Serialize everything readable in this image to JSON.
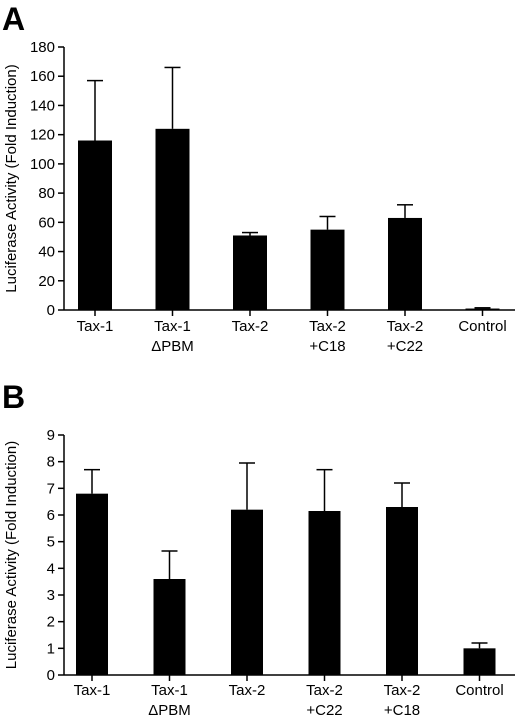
{
  "chart_data": [
    {
      "panel": "A",
      "type": "bar",
      "ylabel": "Luciferase Activity (Fold Induction)",
      "ylim": [
        0,
        180
      ],
      "yticks": [
        "0",
        "20",
        "40",
        "60",
        "80",
        "100",
        "120",
        "140",
        "160",
        "180"
      ],
      "categories": [
        [
          "Tax-1"
        ],
        [
          "Tax-1",
          "ΔPBM"
        ],
        [
          "Tax-2"
        ],
        [
          "Tax-2",
          "+C18"
        ],
        [
          "Tax-2",
          "+C22"
        ],
        [
          "Control"
        ]
      ],
      "values": [
        116,
        124,
        51,
        55,
        63,
        1
      ],
      "errors": [
        41,
        42,
        2,
        9,
        9,
        0.5
      ],
      "bar_color": "#000000"
    },
    {
      "panel": "B",
      "type": "bar",
      "ylabel": "Luciferase Activity (Fold Induction)",
      "ylim": [
        0,
        9
      ],
      "yticks": [
        "0",
        "1",
        "2",
        "3",
        "4",
        "5",
        "6",
        "7",
        "8",
        "9"
      ],
      "categories": [
        [
          "Tax-1"
        ],
        [
          "Tax-1",
          "ΔPBM"
        ],
        [
          "Tax-2"
        ],
        [
          "Tax-2",
          "+C22"
        ],
        [
          "Tax-2",
          "+C18"
        ],
        [
          "Control"
        ]
      ],
      "values": [
        6.8,
        3.6,
        6.2,
        6.15,
        6.3,
        1.0
      ],
      "errors": [
        0.9,
        1.05,
        1.75,
        1.55,
        0.9,
        0.2
      ],
      "bar_color": "#000000"
    }
  ]
}
